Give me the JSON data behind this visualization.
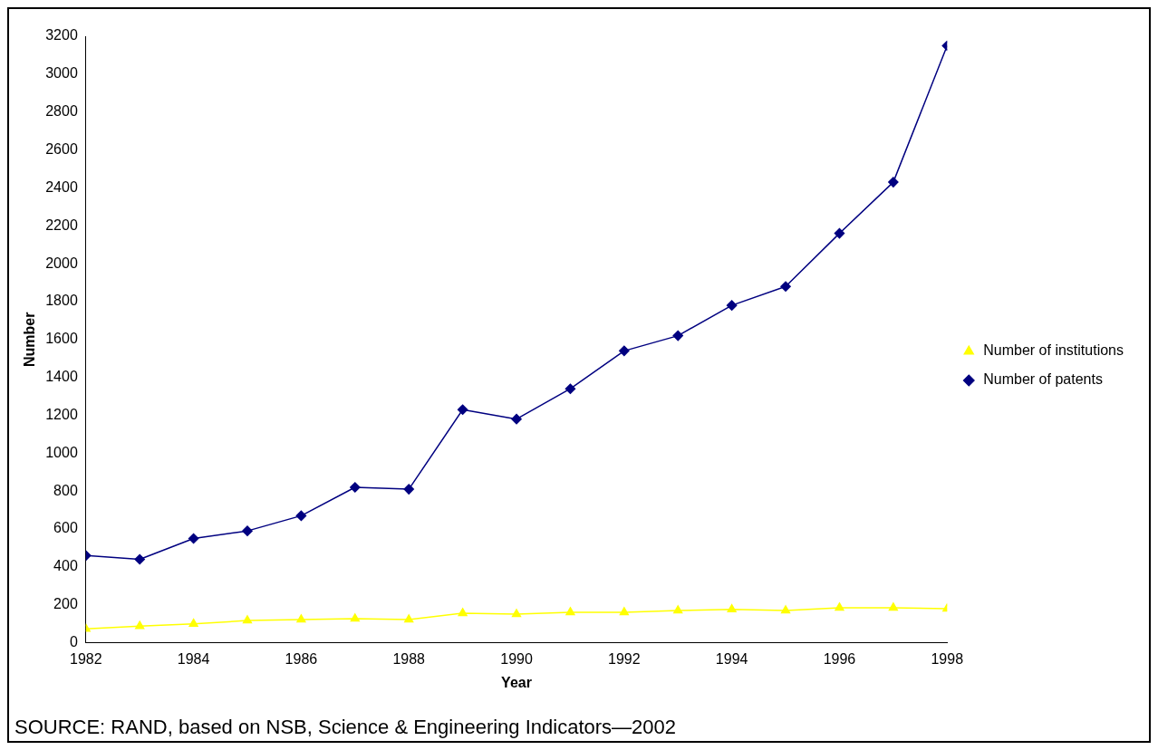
{
  "chart_data": {
    "type": "line",
    "xlabel": "Year",
    "ylabel": "Number",
    "x": [
      1982,
      1983,
      1984,
      1985,
      1986,
      1987,
      1988,
      1989,
      1990,
      1991,
      1992,
      1993,
      1994,
      1995,
      1996,
      1997,
      1998
    ],
    "series": [
      {
        "name": "Number of institutions",
        "color": "#ffff00",
        "marker": "triangle",
        "values": [
          73,
          88,
          100,
          117,
          122,
          127,
          122,
          156,
          151,
          161,
          161,
          170,
          176,
          170,
          185,
          185,
          180
        ]
      },
      {
        "name": "Number of patents",
        "color": "#000080",
        "marker": "diamond",
        "values": [
          460,
          440,
          550,
          590,
          670,
          820,
          810,
          1230,
          1180,
          1340,
          1540,
          1620,
          1780,
          1880,
          2160,
          2430,
          3150
        ]
      }
    ],
    "xlim": [
      1982,
      1998
    ],
    "xticks": [
      1982,
      1984,
      1986,
      1988,
      1990,
      1992,
      1994,
      1996,
      1998
    ],
    "ylim": [
      0,
      3200
    ],
    "yticks": [
      0,
      200,
      400,
      600,
      800,
      1000,
      1200,
      1400,
      1600,
      1800,
      2000,
      2200,
      2400,
      2600,
      2800,
      3000,
      3200
    ],
    "grid": false,
    "legend": "right",
    "line_style": "solid",
    "annotations": [
      "SOURCE:  RAND, based on NSB, Science & Engineering Indicators—2002"
    ]
  }
}
